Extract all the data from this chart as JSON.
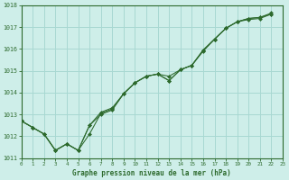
{
  "title": "Graphe pression niveau de la mer (hPa)",
  "background_color": "#ceeee9",
  "grid_color": "#a8d8d2",
  "line_color": "#2d6a2d",
  "xlim": [
    0,
    23
  ],
  "ylim": [
    1011,
    1018
  ],
  "yticks": [
    1011,
    1012,
    1013,
    1014,
    1015,
    1016,
    1017,
    1018
  ],
  "xticks": [
    0,
    1,
    2,
    3,
    4,
    5,
    6,
    7,
    8,
    9,
    10,
    11,
    12,
    13,
    14,
    15,
    16,
    17,
    18,
    19,
    20,
    21,
    22,
    23
  ],
  "series": [
    [
      1012.7,
      1012.4,
      1012.1,
      1011.35,
      1011.65,
      1011.35,
      1012.1,
      1013.05,
      1013.25,
      1013.95,
      1014.45,
      1014.75,
      1014.85,
      1014.75,
      1015.05,
      1015.25,
      1015.9,
      1016.45,
      1016.95,
      1017.25,
      1017.35,
      1017.4,
      1017.6
    ],
    [
      1012.7,
      1012.4,
      1012.1,
      1011.35,
      1011.65,
      1011.35,
      1012.5,
      1013.0,
      1013.2,
      1013.95,
      1014.45,
      1014.75,
      1014.85,
      1014.55,
      1015.05,
      1015.25,
      1015.95,
      1016.45,
      1016.95,
      1017.25,
      1017.4,
      1017.45,
      1017.6
    ],
    [
      1012.7,
      1012.4,
      1012.1,
      1011.35,
      1011.65,
      1011.35,
      1012.5,
      1013.1,
      1013.3,
      1013.95,
      1014.45,
      1014.75,
      1014.85,
      1014.55,
      1015.05,
      1015.25,
      1015.95,
      1016.45,
      1016.95,
      1017.25,
      1017.4,
      1017.45,
      1017.65
    ]
  ]
}
